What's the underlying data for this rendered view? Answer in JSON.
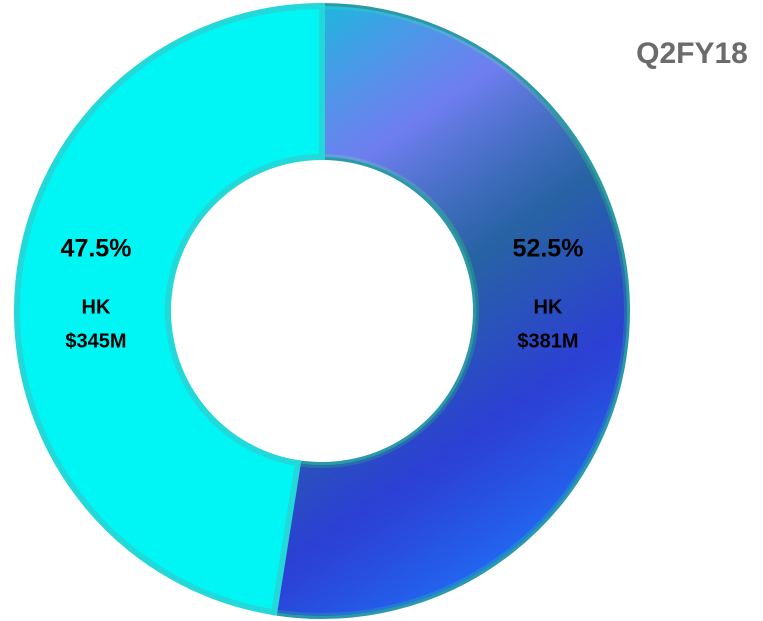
{
  "chart_data": {
    "type": "donut",
    "title": "Q2FY18",
    "categories": [
      "HK",
      "HK"
    ],
    "amount_labels": [
      "$381M",
      "$345M"
    ],
    "values": [
      52.5,
      47.5
    ],
    "value_labels": [
      "52.5%",
      "47.5%"
    ],
    "colors": [
      "#2e55d8",
      "#00f5f5"
    ]
  }
}
